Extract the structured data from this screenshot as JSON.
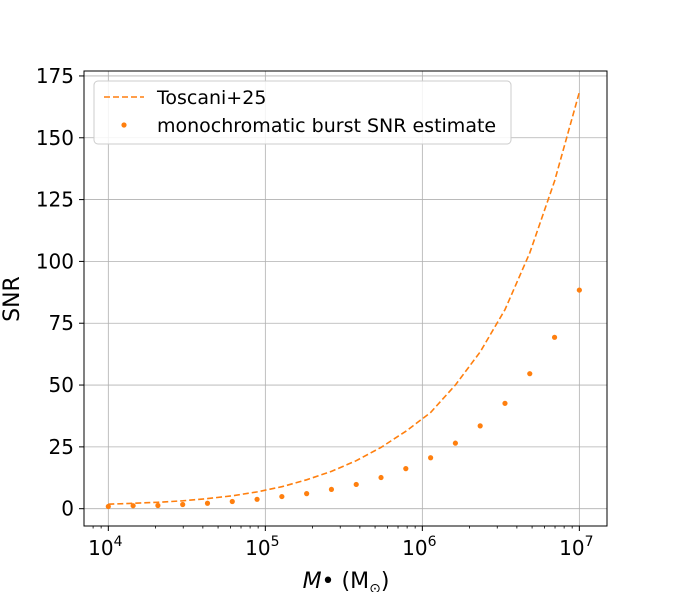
{
  "chart_data": {
    "type": "scatter",
    "title": "",
    "xlabel": "M• (M⊙)",
    "ylabel": "SNR",
    "xscale": "log",
    "xlim": [
      7000,
      15000000
    ],
    "ylim": [
      -7,
      177
    ],
    "grid": true,
    "legend_position": "top-left",
    "x_ticks": [
      {
        "value": 10000,
        "base": "10",
        "exp": "4"
      },
      {
        "value": 100000,
        "base": "10",
        "exp": "5"
      },
      {
        "value": 1000000,
        "base": "10",
        "exp": "6"
      },
      {
        "value": 10000000,
        "base": "10",
        "exp": "7"
      }
    ],
    "y_ticks": [
      0,
      25,
      50,
      75,
      100,
      125,
      150,
      175
    ],
    "series": [
      {
        "name": "Toscani+25",
        "style": "dashed-line",
        "color": "#ff7f0e",
        "x": [
          10000,
          14384,
          20691,
          29764,
          42813,
          61585,
          88587,
          127427,
          183298,
          263665,
          379269,
          545559,
          784760,
          1128838,
          1623777,
          2335721,
          3359818,
          4832930,
          6951928,
          10000000
        ],
        "y": [
          1.8,
          2.2,
          2.6,
          3.2,
          4.1,
          5.2,
          6.8,
          8.9,
          11.7,
          15.1,
          19.4,
          24.8,
          31.3,
          38.9,
          50.0,
          63.4,
          80.5,
          103.5,
          132.5,
          168.5
        ]
      },
      {
        "name": "monochromatic burst SNR estimate",
        "style": "markers",
        "color": "#ff7f0e",
        "x": [
          10000,
          14384,
          20691,
          29764,
          42813,
          61585,
          88587,
          127427,
          183298,
          263665,
          379269,
          545559,
          784760,
          1128838,
          1623777,
          2335721,
          3359818,
          4832930,
          6951928,
          10000000
        ],
        "y": [
          0.9,
          1.2,
          1.3,
          1.7,
          2.2,
          2.9,
          3.8,
          4.9,
          6.1,
          7.8,
          9.8,
          12.6,
          16.2,
          20.6,
          26.5,
          33.5,
          42.6,
          54.6,
          69.3,
          88.4
        ]
      }
    ]
  }
}
